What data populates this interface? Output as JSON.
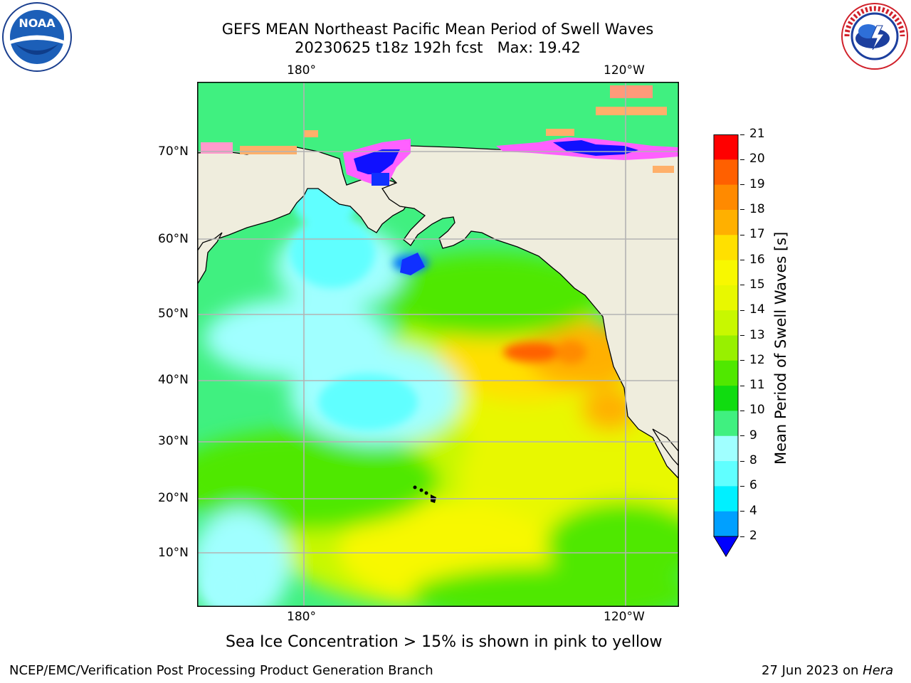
{
  "header": {
    "title_line1": "GEFS MEAN Northeast Pacific Mean Period of Swell Waves",
    "title_line2": "20230625 t18z 192h fcst   Max: 19.42"
  },
  "map": {
    "top_lon_labels": [
      "180°",
      "120°W"
    ],
    "bottom_lon_labels": [
      "180°",
      "120°W"
    ],
    "lat_labels": [
      "70°N",
      "60°N",
      "50°N",
      "40°N",
      "30°N",
      "20°N",
      "10°N"
    ],
    "land_color": "#efeddd",
    "coast_color": "#000000",
    "grid_color": "#b3b3b3"
  },
  "colorbar": {
    "label": "Mean Period of Swell Waves [s]",
    "ticks": [
      "21",
      "20",
      "19",
      "18",
      "17",
      "16",
      "15",
      "14",
      "13",
      "12",
      "11",
      "10",
      "9",
      "8",
      "6",
      "4",
      "2"
    ],
    "colors": [
      "#ff0000",
      "#ff3000",
      "#ff6000",
      "#ff8a00",
      "#ffb000",
      "#ffe000",
      "#f8f800",
      "#e8f800",
      "#c8f800",
      "#98f000",
      "#50e800",
      "#10dc10",
      "#40f080",
      "#a0ffff",
      "#60ffff",
      "#00f0ff",
      "#00a0ff"
    ],
    "extend_color": "#0000ff"
  },
  "notes": {
    "sea_ice": "Sea Ice Concentration > 15% is shown in pink to yellow"
  },
  "footer": {
    "left": "NCEP/EMC/Verification Post Processing Product Generation Branch",
    "right_date": "27 Jun 2023 on ",
    "right_host": "Hera"
  },
  "logos": {
    "left_text": "NOAA",
    "right_text": "NATIONAL WEATHER SERVICE"
  }
}
